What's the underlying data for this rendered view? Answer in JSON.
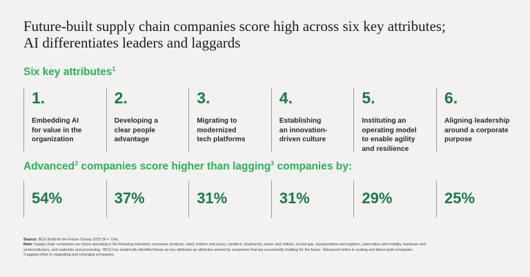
{
  "title": {
    "line1": "Future-built supply chain companies score high across six key attributes;",
    "line2": "AI differentiates leaders and laggards"
  },
  "attributes_heading": {
    "text": "Six key attributes",
    "sup": "1"
  },
  "attributes": [
    {
      "number": "1.",
      "lines": [
        "Embedding AI",
        "for value in the",
        "organization"
      ]
    },
    {
      "number": "2.",
      "lines": [
        "Developing a",
        "clear people",
        "advantage"
      ]
    },
    {
      "number": "3.",
      "lines": [
        "Migrating to",
        "modernized",
        "tech platforms"
      ]
    },
    {
      "number": "4.",
      "lines": [
        "Establishing",
        "an innovation-",
        "driven culture"
      ]
    },
    {
      "number": "5.",
      "lines": [
        "Instituting an",
        "operating model",
        "to enable agility",
        "and resilience"
      ]
    },
    {
      "number": "6.",
      "lines": [
        "Aligning leadership",
        "around a corporate",
        "purpose"
      ]
    }
  ],
  "advantage_heading": {
    "part1": "Advanced",
    "sup1": "2",
    "part2": " companies score higher than lagging",
    "sup2": "3",
    "part3": " companies by:"
  },
  "stats": [
    "54%",
    "37%",
    "31%",
    "31%",
    "29%",
    "25%"
  ],
  "footnotes": {
    "source_label": "Source:",
    "source_text": " BCG Build for the Future Survey 2022 (N = 724).",
    "note_label": "Note:",
    "note_line1": " Supply chain companies are those operating in the following industries: consumer products, retail, fashion and luxury, medtech, biopharma, power and utilities, oil and gas, transportation and logistics, automotive and mobility, hardware and",
    "note_line2": "semiconductors, and materials and processing. ¹BCG has empirically identified these six key attributes as attributes shared by companies that are successfully building for the future. ²Advanced refers to scaling and future-built companies.",
    "note_line3": "³Lagging refers to stagnating and emerging companies."
  },
  "colors": {
    "accent_green": "#29b25a",
    "number_green": "#197a4a",
    "background": "#f3f2f0"
  }
}
